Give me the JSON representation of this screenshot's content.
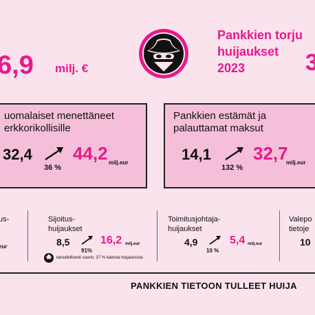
{
  "header": {
    "total_value": "6,9",
    "total_unit": "milj. €",
    "title_line1": "Pankkien torju",
    "title_line2": "huijaukset",
    "title_line3": "2023",
    "right_partial": "3"
  },
  "card_left": {
    "title_line1": "uomalaiset menettäneet",
    "title_line2": "erkkorikollisille",
    "value_before": "32,4",
    "pct": "36 %",
    "value_after": "44,2",
    "unit": "milj.eur"
  },
  "card_right": {
    "title_line1": "Pankkien estämät ja",
    "title_line2": "palauttamat maksut",
    "value_before": "14,1",
    "pct": "132 %",
    "value_after": "32,7",
    "unit": "milj.eur"
  },
  "row": {
    "item0": {
      "title_line1": "us-",
      "unit": "eur"
    },
    "item1": {
      "title_line1": "Sijoitus-",
      "title_line2": "huijaukset",
      "value_before": "8,5",
      "pct": "91%",
      "value_after": "16,2",
      "unit": "milj.eur",
      "note": "taloudellisesti suurin, 37 % kaikista huijauksista"
    },
    "item2": {
      "title_line1": "Toimitusjohtaja-",
      "title_line2": "huijaukset",
      "value_before": "4,9",
      "pct": "10 %",
      "value_after": "5,4",
      "unit": "milj.eur"
    },
    "item3": {
      "title_line1": "Valepo",
      "title_line2": "tietoje",
      "value_before": "10"
    }
  },
  "footer": {
    "text": "PANKKIEN TIETOON TULLEET HUIJA"
  },
  "colors": {
    "accent": "#e8198b",
    "panel": "#f6bfd9",
    "bg": "#fbe3ee"
  },
  "icons": {
    "logo": "bandit-cowboy-icon",
    "note_logo": "bandit-cowboy-icon",
    "arrow": "arrow-up-right-icon"
  }
}
